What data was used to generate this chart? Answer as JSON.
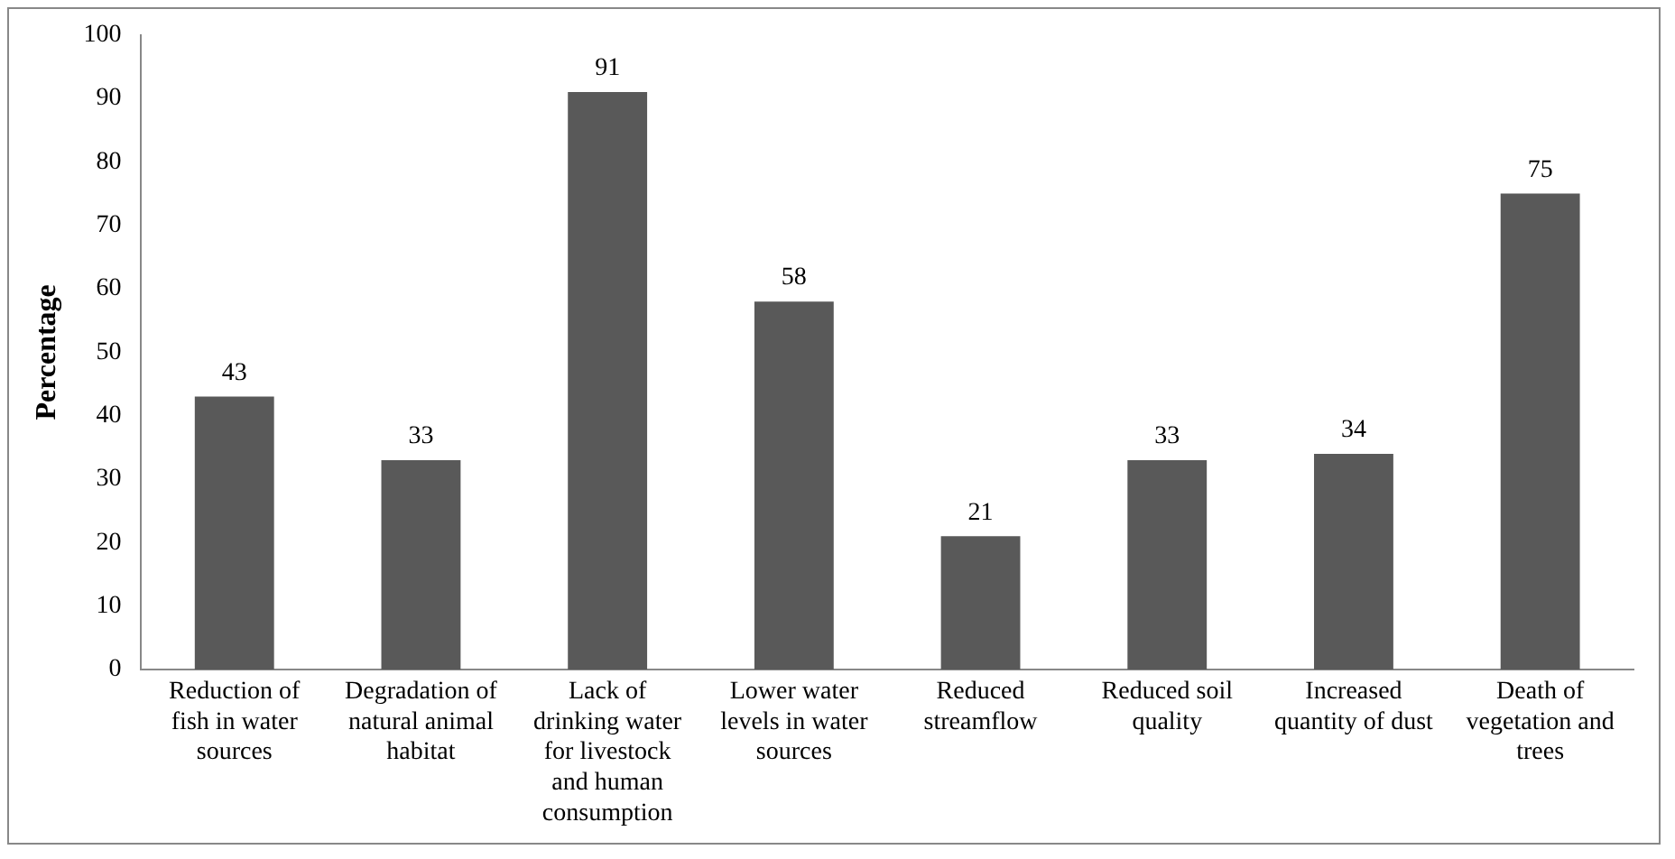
{
  "chart_data": {
    "type": "bar",
    "ylabel": "Percentage",
    "categories": [
      "Reduction of fish in water sources",
      "Degradation of natural animal habitat",
      "Lack of drinking water for livestock and human consumption",
      "Lower water levels in water sources",
      "Reduced streamflow",
      "Reduced soil quality",
      "Increased quantity of dust",
      "Death of vegetation and trees"
    ],
    "values": [
      43,
      33,
      91,
      58,
      21,
      33,
      34,
      75
    ],
    "color": "#595959",
    "ylim": [
      0,
      100
    ],
    "yticks": [
      0,
      10,
      20,
      30,
      40,
      50,
      60,
      70,
      80,
      90,
      100
    ],
    "grid": false,
    "legend": false,
    "data_labels": true
  }
}
